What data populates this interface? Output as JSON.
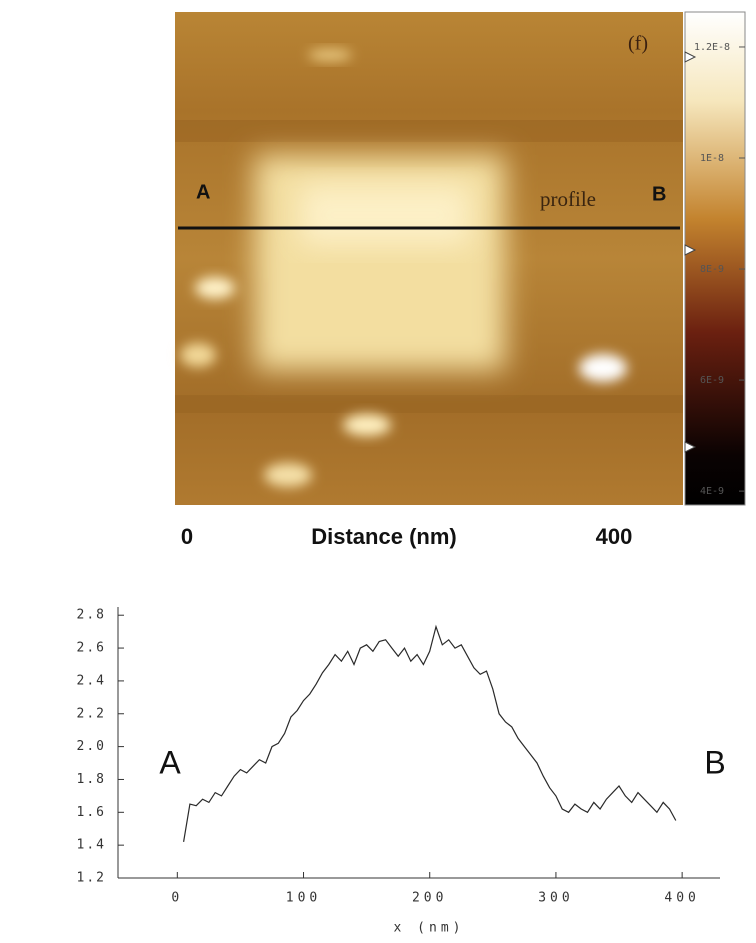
{
  "image": {
    "panel_label": "(f)",
    "start_label": "A",
    "end_label": "B",
    "line_label": "profile",
    "colorbar": {
      "lim": [
        3.75e-09,
        1.263e-08
      ],
      "ticks": [
        {
          "value": 1.2e-08,
          "label": "1.2E-8"
        },
        {
          "value": 1e-08,
          "label": "1E-8"
        },
        {
          "value": 8e-09,
          "label": "8E-9"
        },
        {
          "value": 6e-09,
          "label": "6E-9"
        },
        {
          "value": 4e-09,
          "label": "4E-9"
        }
      ]
    },
    "distance_labels": [
      "0",
      "Distance (nm)",
      "400"
    ]
  },
  "chart_data": {
    "type": "line",
    "xlabel": "x (nm)",
    "annotations": [
      "A",
      "B"
    ],
    "color": "#2a2a2a",
    "xlim": [
      -47,
      430
    ],
    "ylim": [
      1.2,
      2.85
    ],
    "xticks": [
      0,
      100,
      200,
      300,
      400
    ],
    "yticks": [
      1.2,
      1.4,
      1.6,
      1.8,
      {
        "value": 2,
        "label": "2.0"
      },
      2.2,
      2.4,
      2.6,
      2.8
    ],
    "x": [
      5,
      10,
      15,
      20,
      25,
      30,
      35,
      40,
      45,
      50,
      55,
      60,
      65,
      70,
      75,
      80,
      85,
      90,
      95,
      100,
      105,
      110,
      115,
      120,
      125,
      130,
      135,
      140,
      145,
      150,
      155,
      160,
      165,
      170,
      175,
      180,
      185,
      190,
      195,
      200,
      205,
      210,
      215,
      220,
      225,
      230,
      235,
      240,
      245,
      250,
      255,
      260,
      265,
      270,
      275,
      280,
      285,
      290,
      295,
      300,
      305,
      310,
      315,
      320,
      325,
      330,
      335,
      340,
      345,
      350,
      355,
      360,
      365,
      370,
      375,
      380,
      385,
      390,
      395
    ],
    "values": [
      1.42,
      1.65,
      1.64,
      1.68,
      1.66,
      1.72,
      1.7,
      1.76,
      1.82,
      1.86,
      1.84,
      1.88,
      1.92,
      1.9,
      2.0,
      2.02,
      2.08,
      2.18,
      2.22,
      2.28,
      2.32,
      2.38,
      2.45,
      2.5,
      2.56,
      2.52,
      2.58,
      2.5,
      2.6,
      2.62,
      2.58,
      2.64,
      2.65,
      2.6,
      2.55,
      2.6,
      2.52,
      2.56,
      2.5,
      2.58,
      2.73,
      2.62,
      2.65,
      2.6,
      2.62,
      2.55,
      2.48,
      2.44,
      2.46,
      2.35,
      2.2,
      2.15,
      2.12,
      2.05,
      2.0,
      1.95,
      1.9,
      1.82,
      1.75,
      1.7,
      1.62,
      1.6,
      1.65,
      1.62,
      1.6,
      1.66,
      1.62,
      1.68,
      1.72,
      1.76,
      1.7,
      1.66,
      1.72,
      1.68,
      1.64,
      1.6,
      1.66,
      1.62,
      1.55
    ]
  }
}
